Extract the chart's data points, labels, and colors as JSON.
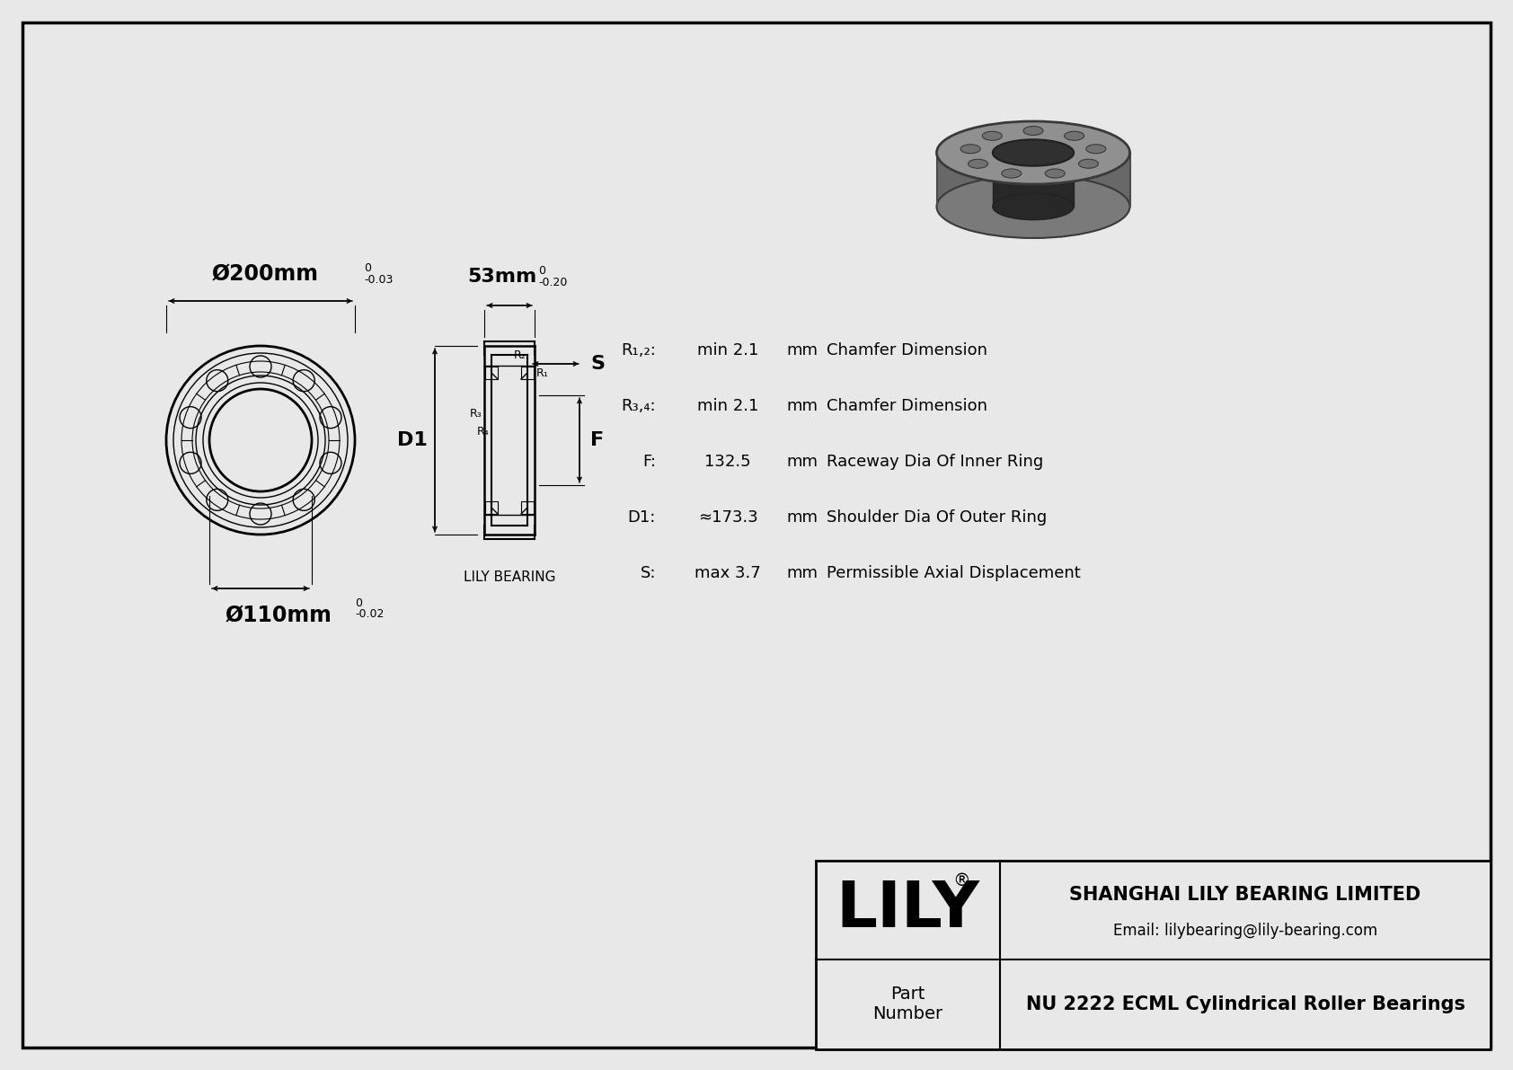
{
  "bg_color": "#e8e8e8",
  "line_color": "#000000",
  "title_company": "SHANGHAI LILY BEARING LIMITED",
  "title_email": "Email: lilybearing@lily-bearing.com",
  "part_label": "Part\nNumber",
  "part_number": "NU 2222 ECML Cylindrical Roller Bearings",
  "lily_text": "LILY",
  "registered": "®",
  "dim_od_main": "Ø200mm",
  "dim_id_main": "Ø110mm",
  "dim_w_main": "53mm",
  "label_R12": "R₁,₂:",
  "label_R34": "R₃,₄:",
  "label_F": "F:",
  "label_D1": "D1:",
  "label_S": "S:",
  "val_R12": "min 2.1",
  "val_R34": "min 2.1",
  "val_F": "132.5",
  "val_D1": "≈173.3",
  "val_S": "max 3.7",
  "unit_mm": "mm",
  "desc_R12": "Chamfer Dimension",
  "desc_R34": "Chamfer Dimension",
  "desc_F": "Raceway Dia Of Inner Ring",
  "desc_D1": "Shoulder Dia Of Outer Ring",
  "desc_S": "Permissible Axial Displacement",
  "lily_bearing_label": "LILY BEARING"
}
